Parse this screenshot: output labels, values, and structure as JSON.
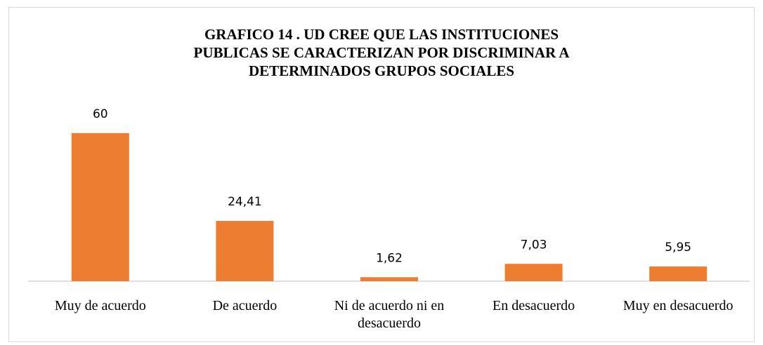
{
  "chart_data": {
    "type": "bar",
    "title": "GRAFICO  14 . UD  CREE QUE LAS INSTITUCIONES PUBLICAS SE CARACTERIZAN POR DISCRIMINAR A DETERMINADOS GRUPOS SOCIALES",
    "categories": [
      "Muy de acuerdo",
      "De acuerdo",
      "Ni de acuerdo ni en desacuerdo",
      "En desacuerdo",
      "Muy en desacuerdo"
    ],
    "values": [
      60,
      24.41,
      1.62,
      7.03,
      5.95
    ],
    "value_labels": [
      "60",
      "24,41",
      "1,62",
      "7,03",
      "5,95"
    ],
    "color": "#ed7d31"
  }
}
